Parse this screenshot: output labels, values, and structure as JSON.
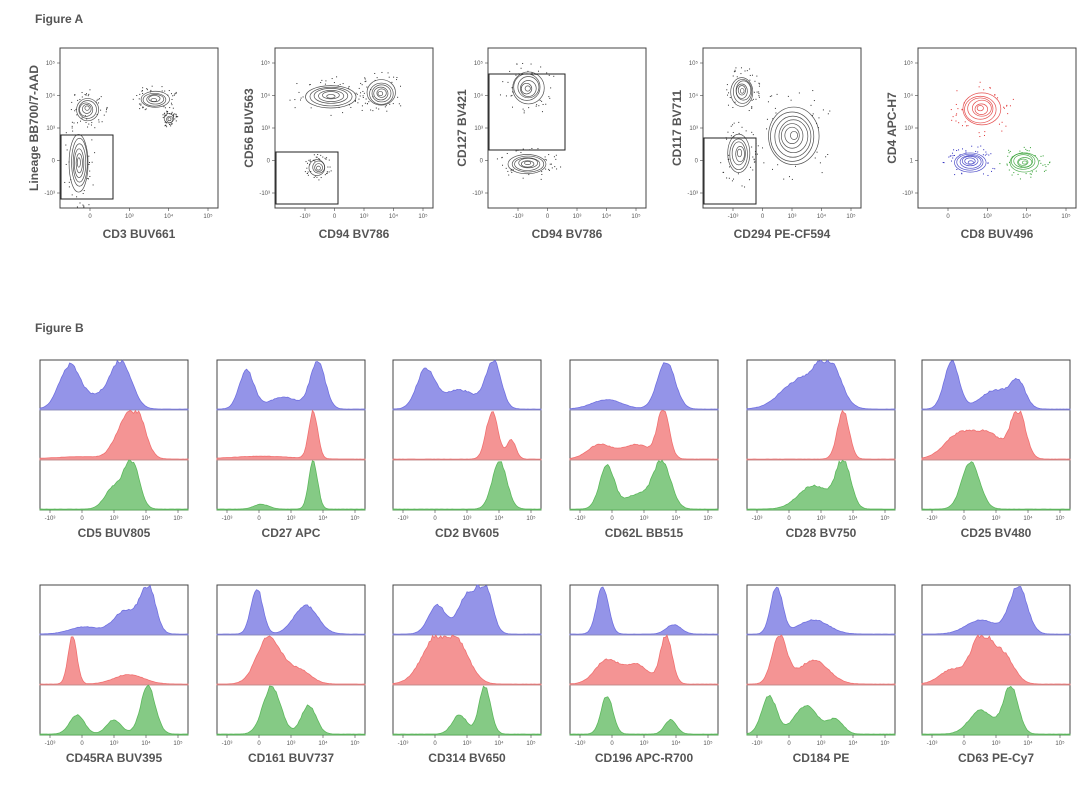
{
  "figure_a_label": "Figure A",
  "figure_b_label": "Figure B",
  "colors": {
    "blue": "#7070e0",
    "red": "#f07070",
    "green": "#5cb85c",
    "ink": "#333333"
  },
  "chart_data": [
    {
      "type": "scatter",
      "panel": "A1",
      "xlabel": "CD3 BUV661",
      "ylabel": "Lineage BB700/7-AAD",
      "x_ticks": [
        "0",
        "10³",
        "10⁴",
        "10⁵"
      ],
      "y_ticks": [
        "10⁵",
        "10⁴",
        "10³",
        "0",
        "-10³"
      ],
      "gate": true,
      "populations": [
        {
          "x": 0.6,
          "y": 0.68,
          "rx": 0.09,
          "ry": 0.05,
          "rings": 5,
          "color": "#333333"
        },
        {
          "x": 0.17,
          "y": 0.62,
          "rx": 0.07,
          "ry": 0.07,
          "rings": 5,
          "color": "#333333"
        },
        {
          "x": 0.12,
          "y": 0.28,
          "rx": 0.06,
          "ry": 0.18,
          "rings": 6,
          "color": "#333333"
        },
        {
          "x": 0.69,
          "y": 0.56,
          "rx": 0.03,
          "ry": 0.03,
          "rings": 3,
          "color": "#333333"
        }
      ]
    },
    {
      "type": "scatter",
      "panel": "A2",
      "xlabel": "CD94 BV786",
      "ylabel": "CD56 BUV563",
      "x_ticks": [
        "-10³",
        "0",
        "10³",
        "10⁴",
        "10⁵"
      ],
      "y_ticks": [
        "10⁵",
        "10⁴",
        "10³",
        "0",
        "-10³"
      ],
      "gate": true,
      "populations": [
        {
          "x": 0.35,
          "y": 0.7,
          "rx": 0.16,
          "ry": 0.07,
          "rings": 6,
          "color": "#333333"
        },
        {
          "x": 0.67,
          "y": 0.72,
          "rx": 0.09,
          "ry": 0.08,
          "rings": 6,
          "color": "#333333"
        },
        {
          "x": 0.27,
          "y": 0.25,
          "rx": 0.05,
          "ry": 0.05,
          "rings": 4,
          "color": "#333333"
        }
      ]
    },
    {
      "type": "scatter",
      "panel": "A3",
      "xlabel": "CD94 BV786",
      "ylabel": "CD127 BV421",
      "x_ticks": [
        "-10³",
        "0",
        "10³",
        "10⁴",
        "10⁵"
      ],
      "y_ticks": [
        "10⁵",
        "10⁴",
        "10³",
        "0",
        "-10³"
      ],
      "gate": true,
      "populations": [
        {
          "x": 0.25,
          "y": 0.75,
          "rx": 0.1,
          "ry": 0.1,
          "rings": 6,
          "color": "#333333"
        },
        {
          "x": 0.25,
          "y": 0.28,
          "rx": 0.12,
          "ry": 0.06,
          "rings": 6,
          "color": "#333333"
        }
      ]
    },
    {
      "type": "scatter",
      "panel": "A4",
      "xlabel": "CD294 PE-CF594",
      "ylabel": "CD117 BV711",
      "x_ticks": [
        "-10³",
        "0",
        "10³",
        "10⁴",
        "10⁵"
      ],
      "y_ticks": [
        "10⁵",
        "10⁴",
        "10³",
        "0",
        "-10³"
      ],
      "gate": true,
      "populations": [
        {
          "x": 0.25,
          "y": 0.73,
          "rx": 0.07,
          "ry": 0.09,
          "rings": 6,
          "color": "#333333"
        },
        {
          "x": 0.57,
          "y": 0.45,
          "rx": 0.16,
          "ry": 0.18,
          "rings": 7,
          "color": "#333333"
        },
        {
          "x": 0.23,
          "y": 0.34,
          "rx": 0.07,
          "ry": 0.12,
          "rings": 5,
          "color": "#333333"
        }
      ]
    },
    {
      "type": "scatter",
      "panel": "A5",
      "xlabel": "CD8 BUV496",
      "ylabel": "CD4 APC-H7",
      "x_ticks": [
        "0",
        "10³",
        "10⁴",
        "10⁵"
      ],
      "y_ticks": [
        "10⁵",
        "10⁴",
        "10³",
        "1",
        "-10³"
      ],
      "gate": false,
      "populations": [
        {
          "x": 0.4,
          "y": 0.62,
          "rx": 0.12,
          "ry": 0.1,
          "rings": 6,
          "color": "#e03030"
        },
        {
          "x": 0.33,
          "y": 0.29,
          "rx": 0.1,
          "ry": 0.06,
          "rings": 6,
          "color": "#3030c0"
        },
        {
          "x": 0.67,
          "y": 0.29,
          "rx": 0.09,
          "ry": 0.06,
          "rings": 6,
          "color": "#2e9e2e"
        }
      ]
    },
    {
      "type": "area",
      "panel": "B1",
      "xlabel": "CD5 BUV805",
      "x_ticks": [
        "-10³",
        "0",
        "10³",
        "10⁴",
        "10⁵"
      ],
      "series": [
        {
          "name": "",
          "color": "#7070e0",
          "peaks": [
            [
              0.2,
              0.9,
              0.07
            ],
            [
              0.55,
              0.95,
              0.07
            ],
            [
              0.4,
              0.25,
              0.1
            ]
          ]
        },
        {
          "name": "",
          "color": "#f07070",
          "peaks": [
            [
              0.65,
              1.0,
              0.06
            ],
            [
              0.55,
              0.5,
              0.06
            ],
            [
              0.3,
              0.05,
              0.2
            ]
          ]
        },
        {
          "name": "",
          "color": "#5cb85c",
          "peaks": [
            [
              0.62,
              1.0,
              0.05
            ],
            [
              0.5,
              0.45,
              0.06
            ]
          ]
        }
      ]
    },
    {
      "type": "area",
      "panel": "B2",
      "xlabel": "CD27 APC",
      "x_ticks": [
        "-10³",
        "0",
        "10³",
        "10⁴",
        "10⁵"
      ],
      "series": [
        {
          "name": "",
          "color": "#7070e0",
          "peaks": [
            [
              0.2,
              0.8,
              0.05
            ],
            [
              0.68,
              1.0,
              0.05
            ],
            [
              0.45,
              0.25,
              0.1
            ]
          ]
        },
        {
          "name": "",
          "color": "#f07070",
          "peaks": [
            [
              0.65,
              1.0,
              0.03
            ],
            [
              0.3,
              0.06,
              0.2
            ]
          ]
        },
        {
          "name": "",
          "color": "#5cb85c",
          "peaks": [
            [
              0.65,
              1.0,
              0.03
            ],
            [
              0.3,
              0.1,
              0.05
            ]
          ]
        }
      ]
    },
    {
      "type": "area",
      "panel": "B3",
      "xlabel": "CD2 BV605",
      "x_ticks": [
        "-10³",
        "0",
        "10³",
        "10⁴",
        "10⁵"
      ],
      "series": [
        {
          "name": "",
          "color": "#7070e0",
          "peaks": [
            [
              0.22,
              0.8,
              0.06
            ],
            [
              0.68,
              1.0,
              0.05
            ],
            [
              0.45,
              0.4,
              0.12
            ]
          ]
        },
        {
          "name": "",
          "color": "#f07070",
          "peaks": [
            [
              0.67,
              1.0,
              0.04
            ],
            [
              0.8,
              0.4,
              0.03
            ]
          ]
        },
        {
          "name": "",
          "color": "#5cb85c",
          "peaks": [
            [
              0.72,
              1.0,
              0.05
            ]
          ]
        }
      ]
    },
    {
      "type": "area",
      "panel": "B4",
      "xlabel": "CD62L BB515",
      "x_ticks": [
        "-10³",
        "0",
        "10³",
        "10⁴",
        "10⁵"
      ],
      "series": [
        {
          "name": "",
          "color": "#7070e0",
          "peaks": [
            [
              0.65,
              1.0,
              0.06
            ],
            [
              0.25,
              0.2,
              0.1
            ]
          ]
        },
        {
          "name": "",
          "color": "#f07070",
          "peaks": [
            [
              0.63,
              1.0,
              0.04
            ],
            [
              0.2,
              0.3,
              0.08
            ],
            [
              0.45,
              0.3,
              0.1
            ]
          ]
        },
        {
          "name": "",
          "color": "#5cb85c",
          "peaks": [
            [
              0.25,
              0.9,
              0.05
            ],
            [
              0.62,
              1.0,
              0.06
            ],
            [
              0.45,
              0.3,
              0.08
            ]
          ]
        }
      ]
    },
    {
      "type": "area",
      "panel": "B5",
      "xlabel": "CD28 BV750",
      "x_ticks": [
        "-10³",
        "0",
        "10³",
        "10⁴",
        "10⁵"
      ],
      "series": [
        {
          "name": "",
          "color": "#7070e0",
          "peaks": [
            [
              0.55,
              1.0,
              0.08
            ],
            [
              0.35,
              0.6,
              0.12
            ]
          ]
        },
        {
          "name": "",
          "color": "#f07070",
          "peaks": [
            [
              0.65,
              1.0,
              0.04
            ]
          ]
        },
        {
          "name": "",
          "color": "#5cb85c",
          "peaks": [
            [
              0.65,
              1.0,
              0.05
            ],
            [
              0.45,
              0.5,
              0.1
            ]
          ]
        }
      ]
    },
    {
      "type": "area",
      "panel": "B6",
      "xlabel": "CD25 BV480",
      "x_ticks": [
        "-10³",
        "0",
        "10³",
        "10⁴",
        "10⁵"
      ],
      "series": [
        {
          "name": "",
          "color": "#7070e0",
          "peaks": [
            [
              0.2,
              1.0,
              0.05
            ],
            [
              0.5,
              0.4,
              0.1
            ],
            [
              0.65,
              0.5,
              0.05
            ]
          ]
        },
        {
          "name": "",
          "color": "#f07070",
          "peaks": [
            [
              0.65,
              1.0,
              0.05
            ],
            [
              0.25,
              0.5,
              0.1
            ],
            [
              0.45,
              0.5,
              0.1
            ]
          ]
        },
        {
          "name": "",
          "color": "#5cb85c",
          "peaks": [
            [
              0.33,
              1.0,
              0.06
            ]
          ]
        }
      ]
    },
    {
      "type": "area",
      "panel": "B7",
      "xlabel": "CD45RA BUV395",
      "x_ticks": [
        "-10³",
        "0",
        "10³",
        "10⁴",
        "10⁵"
      ],
      "series": [
        {
          "name": "",
          "color": "#7070e0",
          "peaks": [
            [
              0.73,
              1.0,
              0.05
            ],
            [
              0.58,
              0.5,
              0.08
            ],
            [
              0.3,
              0.15,
              0.1
            ]
          ]
        },
        {
          "name": "",
          "color": "#f07070",
          "peaks": [
            [
              0.22,
              1.0,
              0.03
            ],
            [
              0.6,
              0.2,
              0.1
            ]
          ]
        },
        {
          "name": "",
          "color": "#5cb85c",
          "peaks": [
            [
              0.73,
              1.0,
              0.05
            ],
            [
              0.25,
              0.4,
              0.05
            ],
            [
              0.5,
              0.3,
              0.05
            ]
          ]
        }
      ]
    },
    {
      "type": "area",
      "panel": "B8",
      "xlabel": "CD161 BUV737",
      "x_ticks": [
        "-10³",
        "0",
        "10³",
        "10⁴",
        "10⁵"
      ],
      "series": [
        {
          "name": "",
          "color": "#7070e0",
          "peaks": [
            [
              0.27,
              0.95,
              0.04
            ],
            [
              0.6,
              0.6,
              0.08
            ]
          ]
        },
        {
          "name": "",
          "color": "#f07070",
          "peaks": [
            [
              0.35,
              1.0,
              0.08
            ],
            [
              0.55,
              0.3,
              0.08
            ]
          ]
        },
        {
          "name": "",
          "color": "#5cb85c",
          "peaks": [
            [
              0.37,
              1.0,
              0.06
            ],
            [
              0.62,
              0.6,
              0.05
            ]
          ]
        }
      ]
    },
    {
      "type": "area",
      "panel": "B9",
      "xlabel": "CD314 BV650",
      "x_ticks": [
        "-10³",
        "0",
        "10³",
        "10⁴",
        "10⁵"
      ],
      "series": [
        {
          "name": "",
          "color": "#7070e0",
          "peaks": [
            [
              0.3,
              0.6,
              0.06
            ],
            [
              0.5,
              0.8,
              0.06
            ],
            [
              0.62,
              1.0,
              0.05
            ]
          ]
        },
        {
          "name": "",
          "color": "#f07070",
          "peaks": [
            [
              0.3,
              1.0,
              0.1
            ],
            [
              0.45,
              0.6,
              0.08
            ]
          ]
        },
        {
          "name": "",
          "color": "#5cb85c",
          "peaks": [
            [
              0.62,
              1.0,
              0.04
            ],
            [
              0.45,
              0.4,
              0.05
            ]
          ]
        }
      ]
    },
    {
      "type": "area",
      "panel": "B10",
      "xlabel": "CD196 APC-R700",
      "x_ticks": [
        "-10³",
        "0",
        "10³",
        "10⁴",
        "10⁵"
      ],
      "series": [
        {
          "name": "",
          "color": "#7070e0",
          "peaks": [
            [
              0.22,
              1.0,
              0.04
            ],
            [
              0.7,
              0.2,
              0.05
            ]
          ]
        },
        {
          "name": "",
          "color": "#f07070",
          "peaks": [
            [
              0.65,
              1.0,
              0.04
            ],
            [
              0.25,
              0.5,
              0.08
            ],
            [
              0.45,
              0.4,
              0.08
            ]
          ]
        },
        {
          "name": "",
          "color": "#5cb85c",
          "peaks": [
            [
              0.25,
              0.8,
              0.04
            ],
            [
              0.68,
              0.3,
              0.04
            ]
          ]
        }
      ]
    },
    {
      "type": "area",
      "panel": "B11",
      "xlabel": "CD184 PE",
      "x_ticks": [
        "-10³",
        "0",
        "10³",
        "10⁴",
        "10⁵"
      ],
      "series": [
        {
          "name": "",
          "color": "#7070e0",
          "peaks": [
            [
              0.2,
              1.0,
              0.04
            ],
            [
              0.45,
              0.3,
              0.1
            ]
          ]
        },
        {
          "name": "",
          "color": "#f07070",
          "peaks": [
            [
              0.22,
              1.0,
              0.05
            ],
            [
              0.45,
              0.5,
              0.1
            ]
          ]
        },
        {
          "name": "",
          "color": "#5cb85c",
          "peaks": [
            [
              0.15,
              0.8,
              0.05
            ],
            [
              0.4,
              0.6,
              0.08
            ],
            [
              0.6,
              0.3,
              0.05
            ]
          ]
        }
      ]
    },
    {
      "type": "area",
      "panel": "B12",
      "xlabel": "CD63 PE-Cy7",
      "x_ticks": [
        "-10³",
        "0",
        "10³",
        "10⁴",
        "10⁵"
      ],
      "series": [
        {
          "name": "",
          "color": "#7070e0",
          "peaks": [
            [
              0.65,
              1.0,
              0.06
            ],
            [
              0.4,
              0.3,
              0.1
            ]
          ]
        },
        {
          "name": "",
          "color": "#f07070",
          "peaks": [
            [
              0.4,
              1.0,
              0.07
            ],
            [
              0.55,
              0.6,
              0.07
            ],
            [
              0.2,
              0.3,
              0.08
            ]
          ]
        },
        {
          "name": "",
          "color": "#5cb85c",
          "peaks": [
            [
              0.6,
              1.0,
              0.05
            ],
            [
              0.4,
              0.5,
              0.08
            ]
          ]
        }
      ]
    }
  ]
}
